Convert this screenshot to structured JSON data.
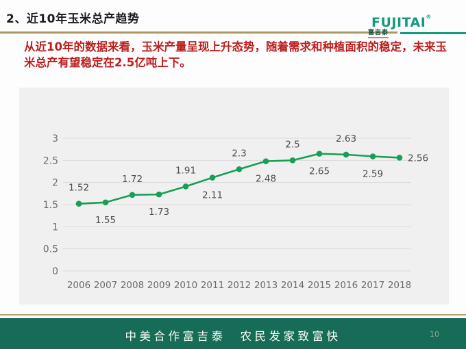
{
  "header": {
    "title": "2、近10年玉米总产趋势",
    "logo": {
      "word": "FUJITAI",
      "registered": "®",
      "chinese": "富吉泰"
    }
  },
  "intro": {
    "text": "从近10年的数据来看，玉米产量呈现上升态势，随着需求和种植面积的稳定，未来玉米总产有望稳定在2.5亿吨上下。"
  },
  "chart_data": {
    "type": "line",
    "categories": [
      "2006",
      "2007",
      "2008",
      "2009",
      "2010",
      "2011",
      "2012",
      "2013",
      "2014",
      "2015",
      "2016",
      "2017",
      "2018"
    ],
    "values": [
      1.52,
      1.55,
      1.72,
      1.73,
      1.91,
      2.11,
      2.3,
      2.48,
      2.5,
      2.65,
      2.63,
      2.59,
      2.56
    ],
    "point_labels": [
      "1.52",
      "1.55",
      "1.72",
      "1.73",
      "1.91",
      "2.11",
      "2.3",
      "2.48",
      "2.5",
      "2.65",
      "2.63",
      "2.59",
      "2.56"
    ],
    "label_positions": [
      "above",
      "below",
      "above",
      "below",
      "above",
      "below",
      "above",
      "below",
      "above",
      "below",
      "above",
      "below",
      "right"
    ],
    "title": "",
    "xlabel": "",
    "ylabel": "",
    "ylim": [
      0,
      3
    ],
    "ytick_step": 0.5,
    "grid": true,
    "legend": null,
    "line_color": "#189e55",
    "grid_color": "#dadada",
    "axis_label_color": "#6b6b6b",
    "value_label_color": "#4d4d4d"
  },
  "footer": {
    "slogan": "中美合作富吉泰　农民发家致富快",
    "page_number": "10"
  },
  "colors": {
    "accent_gold": "#ac9760",
    "brand_green": "#16997c",
    "footer_green": "#166c57",
    "intro_red": "#bc1f1f",
    "panel_gray": "#f0f0f1"
  }
}
